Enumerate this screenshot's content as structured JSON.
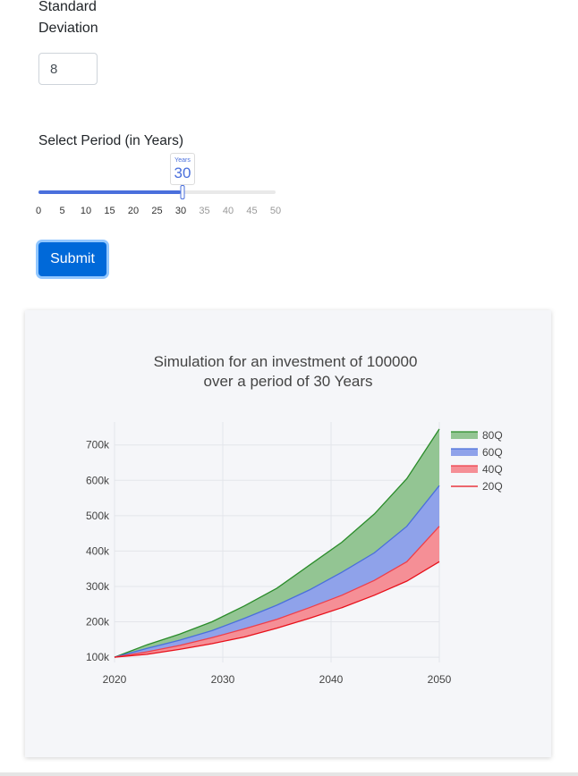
{
  "std_dev": {
    "label": "Standard Deviation",
    "value": "8"
  },
  "period": {
    "label": "Select Period (in Years)",
    "tooltip_unit": "Years",
    "value": 30,
    "value_label": "30",
    "min": 0,
    "max": 50,
    "marks": [
      "0",
      "5",
      "10",
      "15",
      "20",
      "25",
      "30",
      "35",
      "40",
      "45",
      "50"
    ]
  },
  "submit": {
    "label": "Submit"
  },
  "colors": {
    "track": "#4a6fdc",
    "q80_line": "#2a8c2a",
    "q80_fill": "#93c593",
    "q60_line": "#4a6fdc",
    "q60_fill": "#8fa2ea",
    "q40_line": "#ef3f4a",
    "q40_fill": "#f58f96",
    "q20_line": "#e8101a"
  },
  "chart_data": {
    "type": "area",
    "title": "Simulation for an investment of 100000",
    "subtitle": "over a period of 30 Years",
    "xlabel": "",
    "ylabel": "",
    "x": [
      2020,
      2023,
      2026,
      2029,
      2032,
      2035,
      2038,
      2041,
      2044,
      2047,
      2050
    ],
    "xticks": [
      "2020",
      "2030",
      "2040",
      "2050"
    ],
    "xtick_values": [
      2020,
      2030,
      2040,
      2050
    ],
    "yticks": [
      "100k",
      "200k",
      "300k",
      "400k",
      "500k",
      "600k",
      "700k"
    ],
    "ytick_values": [
      100000,
      200000,
      300000,
      400000,
      500000,
      600000,
      700000
    ],
    "xlim": [
      2020,
      2050
    ],
    "ylim": [
      85000,
      765000
    ],
    "grid": true,
    "legend_position": "top-right",
    "series": [
      {
        "name": "80Q",
        "values": [
          100000,
          135000,
          165000,
          200000,
          245000,
          295000,
          360000,
          425000,
          505000,
          605000,
          745000
        ]
      },
      {
        "name": "60Q",
        "values": [
          100000,
          125000,
          148000,
          175000,
          210000,
          247000,
          290000,
          340000,
          395000,
          470000,
          585000
        ]
      },
      {
        "name": "40Q",
        "values": [
          100000,
          115000,
          133000,
          155000,
          180000,
          207000,
          240000,
          275000,
          317000,
          370000,
          470000
        ]
      },
      {
        "name": "20Q",
        "values": [
          100000,
          108000,
          122000,
          138000,
          157000,
          182000,
          210000,
          240000,
          275000,
          315000,
          370000
        ]
      }
    ]
  }
}
